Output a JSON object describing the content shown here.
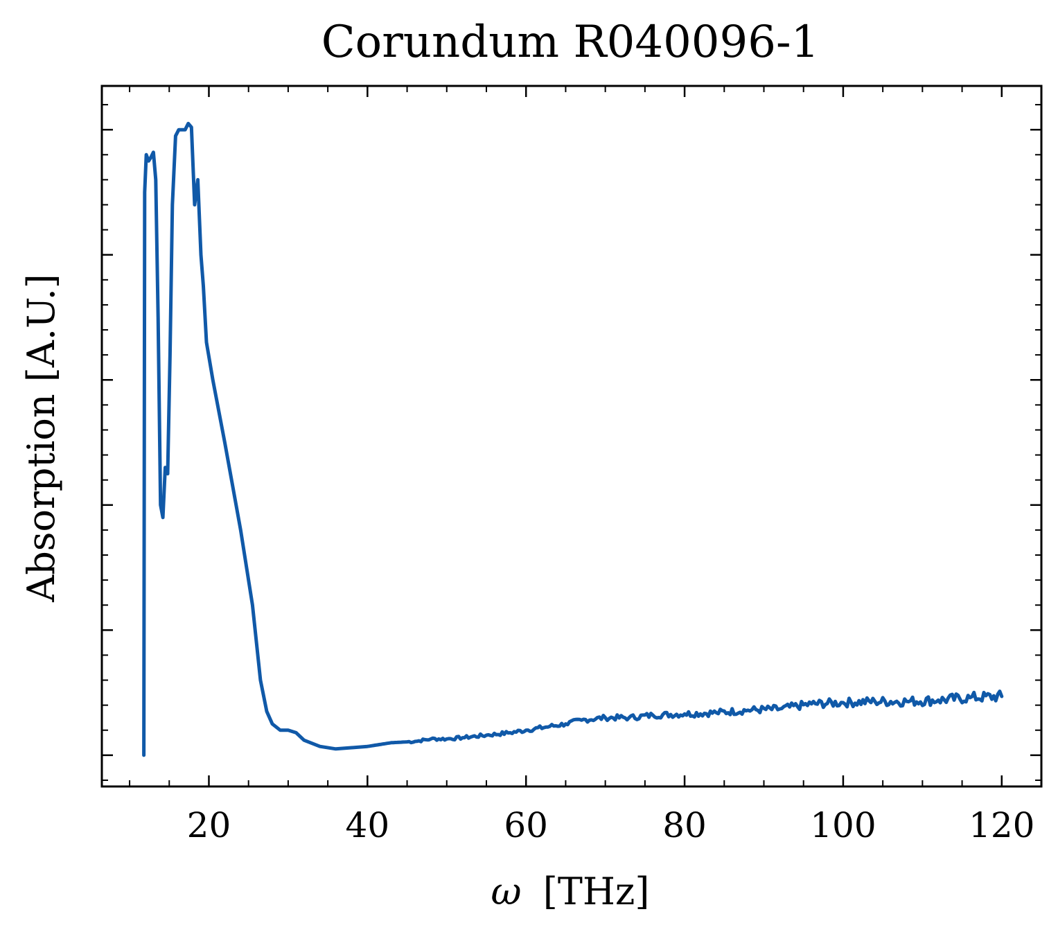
{
  "chart_data": {
    "type": "line",
    "title": "Corundum R040096-1",
    "xlabel_symbol": "ω",
    "xlabel_unit": "[THz]",
    "ylabel": "Absorption [A.U.]",
    "xlim": [
      6.5,
      125
    ],
    "ylim": [
      -0.25,
      5.35
    ],
    "x_ticks": [
      20,
      40,
      60,
      80,
      100,
      120
    ],
    "x_tick_labels": [
      "20",
      "40",
      "60",
      "80",
      "100",
      "120"
    ],
    "x_minor_step": 5,
    "y_major_ticks": [
      0,
      1,
      2,
      3,
      4,
      5
    ],
    "y_tick_labels_shown": false,
    "y_minor_step": 0.2,
    "grid": false,
    "line_color": "#1059a8",
    "series": [
      {
        "x": [
          11.8,
          11.9,
          12.1,
          12.4,
          12.7,
          13.0,
          13.3,
          13.6,
          13.9,
          14.2,
          14.5,
          14.8,
          15.1,
          15.4,
          15.8,
          16.2,
          16.6,
          17.0,
          17.4,
          17.8,
          18.2,
          18.6,
          19.0,
          19.3,
          19.7,
          20.5,
          22.0,
          24.0,
          25.5,
          26.5,
          27.3,
          28.0,
          29.0,
          30.0,
          31.0,
          32.0,
          34.0,
          36.0,
          38.0,
          40.0,
          43.0,
          46.0,
          48.0,
          50.0,
          52.0,
          55.0,
          58.0,
          60.0,
          63.0,
          65.0,
          67.0,
          70.0,
          73.0,
          76.0,
          80.0,
          84.0,
          88.0,
          92.0,
          96.0,
          100.0,
          104.0,
          108.0,
          112.0,
          116.0,
          120.0
        ],
        "y": [
          0.0,
          4.5,
          4.8,
          4.75,
          4.78,
          4.82,
          4.6,
          3.5,
          2.0,
          1.9,
          2.3,
          2.25,
          3.2,
          4.4,
          4.95,
          5.0,
          5.0,
          5.0,
          5.05,
          5.02,
          4.4,
          4.6,
          4.0,
          3.75,
          3.3,
          3.0,
          2.5,
          1.8,
          1.2,
          0.6,
          0.35,
          0.25,
          0.2,
          0.2,
          0.18,
          0.12,
          0.07,
          0.05,
          0.06,
          0.07,
          0.1,
          0.11,
          0.13,
          0.13,
          0.14,
          0.16,
          0.18,
          0.2,
          0.23,
          0.25,
          0.28,
          0.3,
          0.3,
          0.32,
          0.33,
          0.34,
          0.36,
          0.37,
          0.41,
          0.42,
          0.43,
          0.43,
          0.44,
          0.46,
          0.47
        ]
      }
    ]
  }
}
